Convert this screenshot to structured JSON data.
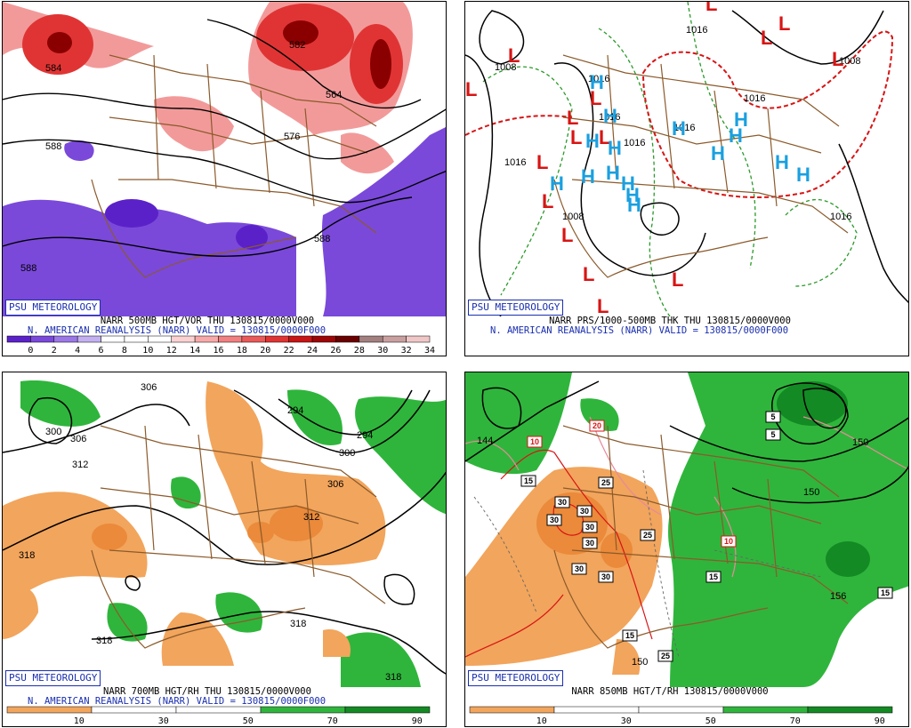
{
  "panels": [
    {
      "badge": "PSU METEOROLOGY",
      "line1": "NARR 500MB HGT/VOR THU 130815/0000V000",
      "line2": "N. AMERICAN REANALYSIS (NARR) VALID = 130815/0000F000",
      "contour_labels": [
        "584",
        "582",
        "564",
        "576",
        "588",
        "588",
        "588"
      ],
      "colorbar": {
        "ticks": [
          "0",
          "2",
          "4",
          "6",
          "8",
          "10",
          "12",
          "14",
          "16",
          "18",
          "20",
          "22",
          "24",
          "26",
          "28",
          "30",
          "32",
          "34"
        ],
        "colors": [
          "#5b21c9",
          "#7a49da",
          "#9b78e6",
          "#c3b0f1",
          "#ffffff",
          "#ffffff",
          "#ffffff",
          "#fbd1d1",
          "#f7a9a9",
          "#f18080",
          "#ea5a5a",
          "#e03434",
          "#c81515",
          "#9d0606",
          "#6a0000",
          "#a38080",
          "#c9a0a0",
          "#f0c7c7"
        ]
      }
    },
    {
      "badge": "PSU METEOROLOGY",
      "line1": "NARR PRS/1000-500MB THK THU 130815/0000V000",
      "line2": "N. AMERICAN REANALYSIS (NARR) VALID = 130815/0000F000",
      "pressure_labels": [
        "1016",
        "1008",
        "1016",
        "1016",
        "1016",
        "1016",
        "1016",
        "1008",
        "1008",
        "1016",
        "1016"
      ],
      "lows": 16,
      "highs": 16
    },
    {
      "badge": "PSU METEOROLOGY",
      "line1": "NARR 700MB HGT/RH THU 130815/0000V000",
      "line2": "N. AMERICAN REANALYSIS (NARR) VALID = 130815/0000F000",
      "contour_labels": [
        "306",
        "300",
        "306",
        "312",
        "318",
        "294",
        "294",
        "300",
        "306",
        "312",
        "318",
        "318",
        "318"
      ],
      "colorbar": {
        "ticks": [
          "10",
          "30",
          "50",
          "70",
          "90"
        ],
        "colors": [
          "#f2a55c",
          "#ffffff",
          "#ffffff",
          "#2fb53c",
          "#138a23"
        ]
      }
    },
    {
      "badge": "PSU METEOROLOGY",
      "line1": "NARR 850MB HGT/T/RH 130815/0000V000",
      "contour_labels": [
        "144",
        "150",
        "150",
        "156",
        "150"
      ],
      "boxed_labels": [
        "10",
        "20",
        "15",
        "25",
        "30",
        "30",
        "30",
        "30",
        "25",
        "30",
        "30",
        "30",
        "15",
        "10",
        "5",
        "5",
        "15",
        "25",
        "15"
      ],
      "colorbar": {
        "ticks": [
          "10",
          "30",
          "50",
          "70",
          "90"
        ],
        "colors": [
          "#f2a55c",
          "#ffffff",
          "#ffffff",
          "#2fb53c",
          "#138a23"
        ]
      }
    }
  ]
}
